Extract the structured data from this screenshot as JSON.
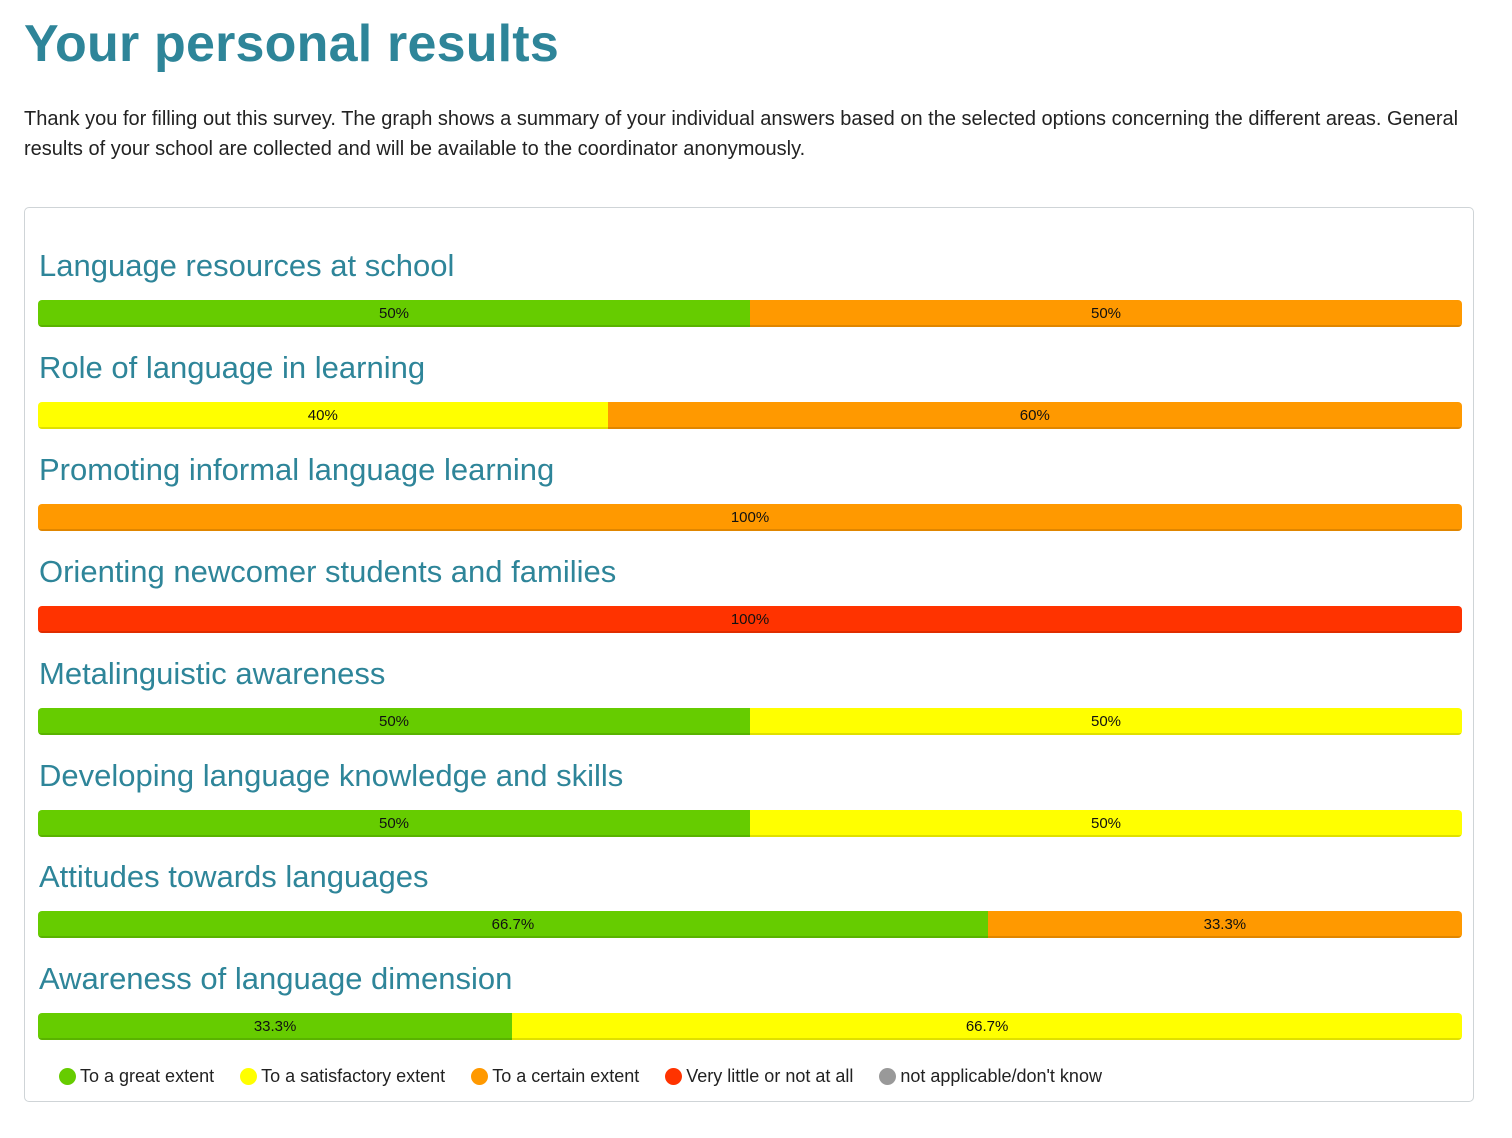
{
  "page": {
    "title": "Your personal results",
    "intro": "Thank you for filling out this survey. The graph shows a summary of your individual answers based on the selected options concerning the different areas. General results of your school are collected and will be available to the coordinator anonymously."
  },
  "chart_data": {
    "type": "bar",
    "orientation": "horizontal-stacked-100",
    "categories": [
      "Language resources at school",
      "Role of language in learning",
      "Promoting informal language learning",
      "Orienting newcomer students and families",
      "Metalinguistic awareness",
      "Developing language knowledge and skills",
      "Attitudes towards languages",
      "Awareness of language dimension"
    ],
    "series": [
      {
        "name": "To a great extent",
        "color": "#66cc00",
        "values": [
          50,
          0,
          0,
          0,
          50,
          50,
          66.7,
          33.3
        ]
      },
      {
        "name": "To a satisfactory extent",
        "color": "#ffff00",
        "values": [
          0,
          40,
          0,
          0,
          50,
          50,
          0,
          66.7
        ]
      },
      {
        "name": "To a certain extent",
        "color": "#ff9900",
        "values": [
          50,
          60,
          100,
          0,
          0,
          0,
          33.3,
          0
        ]
      },
      {
        "name": "Very little or not at all",
        "color": "#ff3300",
        "values": [
          0,
          0,
          0,
          100,
          0,
          0,
          0,
          0
        ]
      },
      {
        "name": "not applicable/don't know",
        "color": "#999999",
        "values": [
          0,
          0,
          0,
          0,
          0,
          0,
          0,
          0
        ]
      }
    ],
    "unit": "%",
    "legend_position": "bottom-left"
  }
}
